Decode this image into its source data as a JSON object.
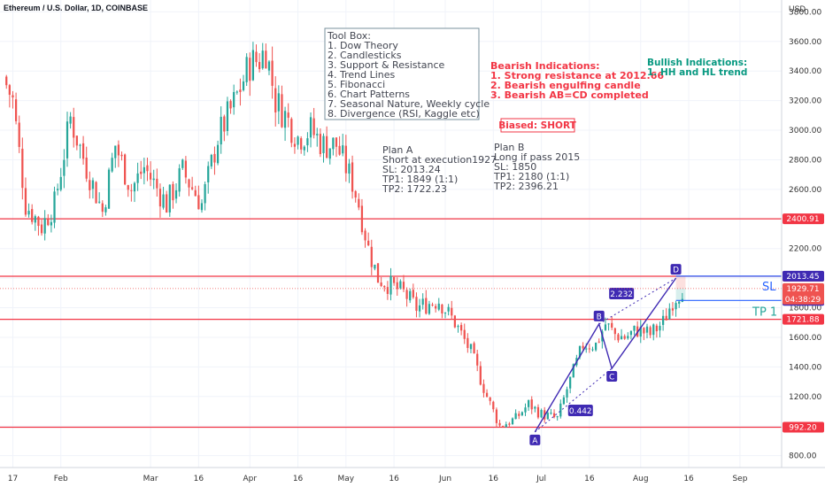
{
  "header": {
    "symbol_title": "Ethereum / U.S. Dollar, 1D, COINBASE",
    "currency": "USD"
  },
  "chart_data": {
    "type": "candlestick",
    "y_ticks": [
      "3800.00",
      "3600.00",
      "3400.00",
      "3200.00",
      "3000.00",
      "2800.00",
      "2600.00",
      "2400.00",
      "2200.00",
      "2000.00",
      "1800.00",
      "1600.00",
      "1400.00",
      "1200.00",
      "1000.00",
      "800.00"
    ],
    "y_tick_values": [
      3800,
      3600,
      3400,
      3200,
      3000,
      2800,
      2600,
      2400,
      2200,
      2000,
      1800,
      1600,
      1400,
      1200,
      1000,
      800
    ],
    "ylim": [
      720,
      3880
    ],
    "x_ticks": [
      "17",
      "Feb",
      "Mar",
      "16",
      "Apr",
      "16",
      "May",
      "16",
      "Jun",
      "16",
      "Jul",
      "16",
      "Aug",
      "16",
      "Sep"
    ],
    "x_tick_days": [
      -15,
      0,
      28,
      43,
      59,
      74,
      89,
      104,
      120,
      135,
      150,
      165,
      181,
      196,
      212
    ],
    "xlim": [
      -19,
      225
    ],
    "colors": {
      "up": "#26a69a",
      "down": "#ef5350",
      "level": "#f23645",
      "pattern": "#3f2ab3",
      "sl_line": "#2962ff"
    },
    "anchors": [
      [
        -18,
        3360
      ],
      [
        -15,
        3200
      ],
      [
        -11,
        2500
      ],
      [
        -6,
        2350
      ],
      [
        -2,
        2500
      ],
      [
        3,
        3080
      ],
      [
        8,
        2750
      ],
      [
        13,
        2450
      ],
      [
        17,
        2900
      ],
      [
        22,
        2600
      ],
      [
        26,
        2750
      ],
      [
        33,
        2500
      ],
      [
        38,
        2720
      ],
      [
        44,
        2500
      ],
      [
        49,
        2950
      ],
      [
        54,
        3180
      ],
      [
        59,
        3450
      ],
      [
        62,
        3480
      ],
      [
        64,
        3550
      ],
      [
        67,
        3200
      ],
      [
        70,
        3100
      ],
      [
        74,
        2950
      ],
      [
        78,
        3000
      ],
      [
        82,
        2900
      ],
      [
        86,
        2900
      ],
      [
        91,
        2650
      ],
      [
        93,
        2500
      ],
      [
        96,
        2200
      ],
      [
        99,
        2000
      ],
      [
        103,
        1950
      ],
      [
        107,
        1900
      ],
      [
        111,
        1800
      ],
      [
        115,
        1830
      ],
      [
        118,
        1850
      ],
      [
        123,
        1700
      ],
      [
        128,
        1500
      ],
      [
        133,
        1200
      ],
      [
        137,
        1000
      ],
      [
        142,
        1050
      ],
      [
        146,
        1150
      ],
      [
        150,
        1080
      ],
      [
        155,
        1050
      ],
      [
        158,
        1250
      ],
      [
        163,
        1550
      ],
      [
        167,
        1550
      ],
      [
        170,
        1690
      ],
      [
        173,
        1620
      ],
      [
        176,
        1600
      ],
      [
        180,
        1650
      ],
      [
        184,
        1620
      ],
      [
        188,
        1700
      ],
      [
        191,
        1850
      ],
      [
        194,
        1930
      ]
    ],
    "levels": [
      {
        "label": "2400.91",
        "value": 2400.91
      },
      {
        "label": "2012.66",
        "value": 2012.66
      },
      {
        "label": "1721.88",
        "value": 1721.88
      },
      {
        "label": "992.20",
        "value": 992.2
      }
    ],
    "price_badges": [
      {
        "label": "2013.45",
        "value": 2013.45,
        "color": "#3f2ab3"
      },
      {
        "label": "1849.34",
        "value": 1849.34,
        "color": "#3f2ab3"
      }
    ],
    "current_price": {
      "label": "1929.71",
      "countdown": "04:38:29",
      "value": 1929.71
    },
    "pattern_points": [
      {
        "label": "A",
        "day": 148,
        "value": 960
      },
      {
        "label": "B",
        "day": 168,
        "value": 1690
      },
      {
        "label": "C",
        "day": 172,
        "value": 1390
      },
      {
        "label": "D",
        "day": 192,
        "value": 2000
      }
    ],
    "ratios": [
      "0.442",
      "2.232"
    ],
    "sl_label": "SL",
    "tp_label": "TP 1"
  },
  "annotations": {
    "toolbox": {
      "title": "Tool Box:",
      "items": [
        "1. Dow Theory",
        "2. Candlesticks",
        "3. Support & Resistance",
        "4. Trend Lines",
        "5. Fibonacci",
        "6. Chart Patterns",
        "7. Seasonal Nature, Weekly cycle",
        "8. Divergence (RSI, Kaggle etc)"
      ]
    },
    "bearish": {
      "title": "Bearish Indications:",
      "items": [
        "1. Strong resistance at 2012.66",
        "2. Bearish engulfing candle",
        "3. Bearish AB=CD completed"
      ]
    },
    "bullish": {
      "title": "Bullish Indications:",
      "items": [
        "1. HH and HL trend"
      ]
    },
    "bias": "Biased: SHORT",
    "plan_a": [
      "Plan A",
      "Short at execution1927",
      "SL: 2013.24",
      "TP1: 1849 (1:1)",
      "TP2: 1722.23"
    ],
    "plan_b": [
      "Plan B",
      "Long if pass 2015",
      "SL: 1850",
      "TP1: 2180 (1:1)",
      "TP2: 2396.21"
    ]
  }
}
